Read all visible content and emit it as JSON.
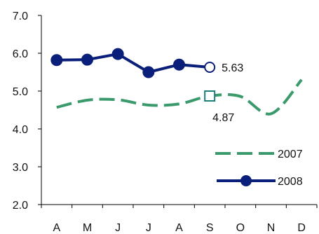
{
  "chart_data": {
    "type": "line",
    "categories": [
      "A",
      "M",
      "J",
      "J",
      "A",
      "S",
      "O",
      "N",
      "D"
    ],
    "ylim": [
      2.0,
      7.0
    ],
    "yticks": [
      "2.0",
      "3.0",
      "4.0",
      "5.0",
      "6.0",
      "7.0"
    ],
    "grid": false,
    "legend_position": "bottom-right",
    "series": [
      {
        "name": "2007",
        "values": [
          4.57,
          4.76,
          4.77,
          4.63,
          4.66,
          4.87,
          4.86,
          4.4,
          5.3
        ],
        "color": "#3a9a6c",
        "style": "dashed",
        "marker": "open-square-at-S"
      },
      {
        "name": "2008",
        "values": [
          5.82,
          5.83,
          5.98,
          5.5,
          5.7,
          5.63,
          null,
          null,
          null
        ],
        "color": "#0a1f7a",
        "style": "solid",
        "marker": "filled-circle"
      }
    ],
    "annotations": [
      {
        "text": "5.63",
        "series": "2008",
        "category_index": 5
      },
      {
        "text": "4.87",
        "series": "2007",
        "category_index": 5
      }
    ]
  }
}
